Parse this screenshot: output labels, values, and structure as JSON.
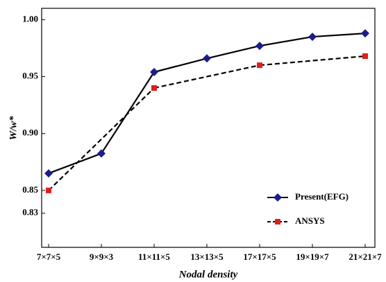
{
  "chart_data": {
    "type": "line",
    "x_label": "Nodal density",
    "y_label": "W/w*",
    "categories": [
      "7×7×5",
      "9×9×3",
      "11×11×5",
      "13×13×5",
      "17×17×5",
      "19×19×7",
      "21×21×7"
    ],
    "series": [
      {
        "name": "Present(EFG)",
        "color": "#1c1c8a",
        "line_color": "#000000",
        "dashed": false,
        "marker": "diamond",
        "values": [
          0.865,
          0.8825,
          0.954,
          0.966,
          0.977,
          0.985,
          0.988
        ]
      },
      {
        "name": "ANSYS",
        "color": "#e01e1e",
        "line_color": "#000000",
        "dashed": true,
        "marker": "square",
        "values": [
          0.85,
          null,
          0.94,
          null,
          0.96,
          null,
          0.968
        ]
      }
    ],
    "ylim": [
      0.8,
      1.01
    ],
    "yticks": [
      0.83,
      0.85,
      {
        "value": 0.9,
        "label": "0.90"
      },
      0.95,
      {
        "value": 1,
        "label": "1.00"
      }
    ],
    "grid": false,
    "legend": "lower right"
  }
}
